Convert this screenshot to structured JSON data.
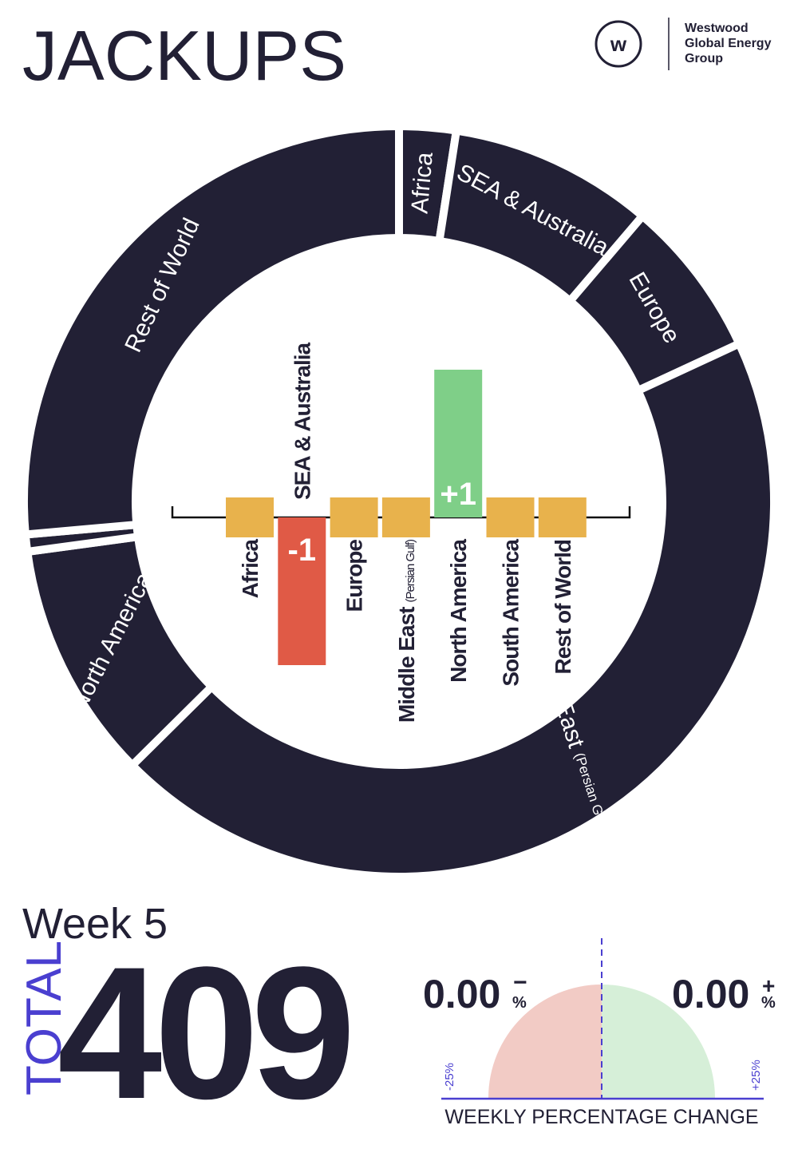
{
  "header": {
    "title": "JACKUPS",
    "logo": [
      "Westwood",
      "Global Energy",
      "Group"
    ]
  },
  "chart_data": [
    {
      "type": "donut",
      "categories": [
        "Africa",
        "SEA & Australia",
        "Europe",
        "Middle East",
        "North America",
        null,
        "Rest of World"
      ],
      "sublabels": [
        null,
        null,
        null,
        "(Persian Gulf & Red Sea)",
        null,
        null,
        null
      ],
      "values": [
        10,
        36,
        28,
        182,
        42,
        3,
        108
      ],
      "color": "#222035"
    },
    {
      "type": "bar",
      "categories": [
        "Africa",
        "SEA & Australia",
        "Europe",
        "Middle East",
        "North America",
        "South America",
        "Rest of World"
      ],
      "sublabels": [
        null,
        null,
        null,
        "(Persian Gulf)",
        null,
        null,
        null
      ],
      "values": [
        0,
        -1,
        0,
        0,
        1,
        0,
        0
      ],
      "value_labels": [
        null,
        "-1",
        null,
        null,
        "+1",
        null,
        null
      ],
      "colors": {
        "zero": "#e8b24c",
        "negative": "#e05a46",
        "positive": "#7fcf88"
      },
      "ylim": [
        -1,
        1
      ]
    }
  ],
  "summary": {
    "week": "Week 5",
    "total_label": "TOTAL",
    "total": 409,
    "gauge": {
      "decrease": "0.00",
      "decrease_sign": "−",
      "increase": "0.00",
      "increase_sign": "+",
      "unit": "%",
      "min_label": "-25%",
      "max_label": "+25%",
      "caption": "WEEKLY PERCENTAGE CHANGE"
    }
  }
}
